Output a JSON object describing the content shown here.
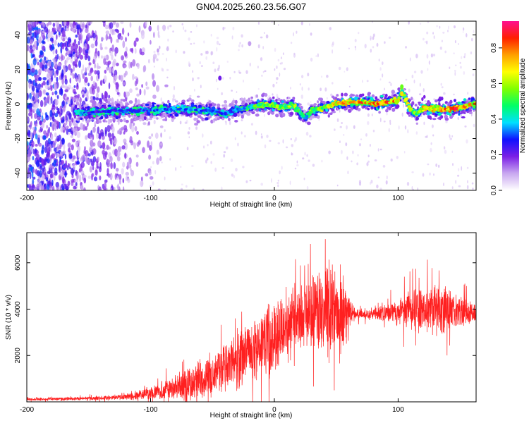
{
  "chart_data": [
    {
      "type": "heatmap",
      "title": "GN04.2025.260.23.56.G07",
      "xlabel": "Height of straight line (km)",
      "ylabel": "Frequency (Hz)",
      "xlim": [
        -200,
        163
      ],
      "ylim": [
        -50,
        48
      ],
      "xticks": [
        -200,
        -100,
        0,
        100
      ],
      "yticks": [
        -40,
        -20,
        0,
        20,
        40
      ],
      "colorbar": {
        "label": "Normalized spectral amplitude",
        "range": [
          0,
          0.95
        ],
        "ticks": [
          0.0,
          0.2,
          0.4,
          0.6,
          0.8
        ],
        "colors": [
          "#ffffff",
          "#c9a8f0",
          "#7b1fe6",
          "#1010ff",
          "#00e0ff",
          "#00ff66",
          "#80ff00",
          "#ffff00",
          "#ffa000",
          "#ff2000",
          "#ff1090"
        ]
      },
      "ridge": {
        "x": [
          -150,
          -130,
          -110,
          -90,
          -70,
          -50,
          -40,
          -30,
          -20,
          -10,
          0,
          10,
          15,
          20,
          25,
          30,
          40,
          50,
          60,
          70,
          80,
          90,
          100,
          103,
          106,
          110,
          115,
          120,
          130,
          140,
          150,
          160
        ],
        "freq": [
          -5,
          -4,
          -4,
          -3,
          -3,
          -4,
          -6,
          -3,
          -2,
          0,
          -1,
          -2,
          0,
          -4,
          -8,
          -4,
          -2,
          0,
          1,
          1,
          0,
          1,
          2,
          8,
          3,
          -3,
          -6,
          -2,
          -3,
          -3,
          -2,
          0
        ],
        "amplitude": [
          0.25,
          0.3,
          0.3,
          0.35,
          0.35,
          0.3,
          0.3,
          0.35,
          0.45,
          0.55,
          0.6,
          0.55,
          0.6,
          0.5,
          0.4,
          0.5,
          0.6,
          0.7,
          0.75,
          0.8,
          0.75,
          0.8,
          0.75,
          0.5,
          0.7,
          0.6,
          0.5,
          0.7,
          0.75,
          0.8,
          0.85,
          0.7
        ]
      }
    },
    {
      "type": "line",
      "color": "#ff2020",
      "xlabel": "Height of straight line (km)",
      "ylabel": "SNR (10 * v/v)",
      "xlim": [
        -200,
        163
      ],
      "ylim": [
        0,
        7300
      ],
      "xticks": [
        -200,
        -100,
        0,
        100
      ],
      "yticks": [
        2000,
        4000,
        6000
      ],
      "envelope": {
        "x": [
          -200,
          -150,
          -120,
          -100,
          -90,
          -80,
          -70,
          -60,
          -50,
          -40,
          -30,
          -20,
          -10,
          0,
          10,
          20,
          30,
          40,
          45,
          50,
          55,
          60,
          65,
          70,
          80,
          90,
          100,
          110,
          120,
          130,
          140,
          150,
          163
        ],
        "mean": [
          100,
          150,
          220,
          350,
          500,
          650,
          800,
          1000,
          1200,
          1500,
          1800,
          2100,
          2500,
          2800,
          3200,
          3600,
          3900,
          4100,
          4200,
          4050,
          3900,
          3900,
          3800,
          3800,
          3800,
          3850,
          3900,
          4000,
          4000,
          4000,
          3950,
          3900,
          3800
        ],
        "amp": [
          60,
          80,
          150,
          300,
          450,
          600,
          800,
          1000,
          1100,
          1300,
          1400,
          1500,
          1600,
          1700,
          1600,
          1500,
          1600,
          2200,
          2800,
          2600,
          1800,
          800,
          300,
          250,
          300,
          400,
          700,
          900,
          1100,
          1200,
          1100,
          800,
          400
        ]
      }
    }
  ]
}
